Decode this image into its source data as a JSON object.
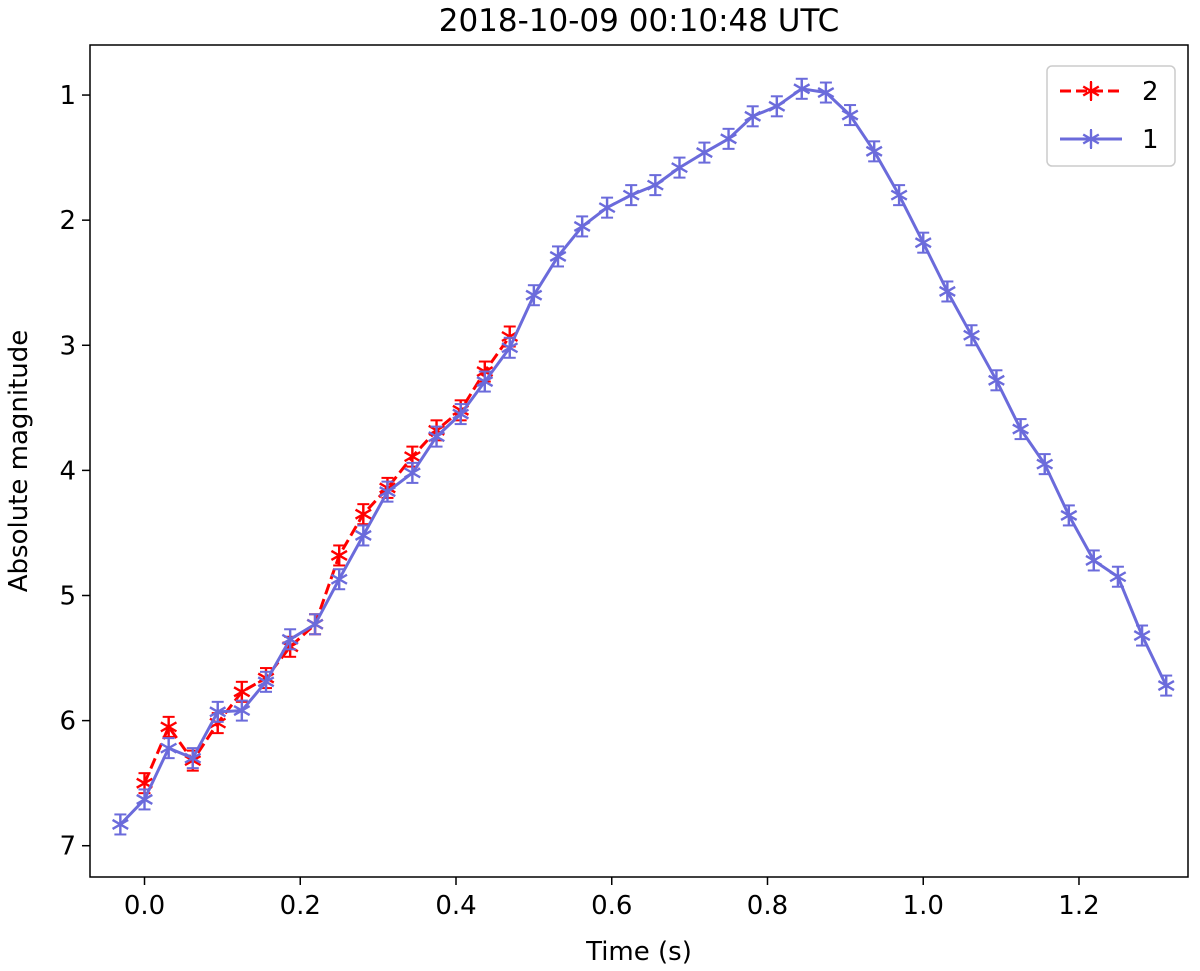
{
  "chart_data": {
    "type": "line",
    "title": "2018-10-09 00:10:48 UTC",
    "xlabel": "Time (s)",
    "ylabel": "Absolute magnitude",
    "xlim": [
      -0.07,
      1.34
    ],
    "ylim": [
      7.25,
      0.6
    ],
    "y_inverted": true,
    "xticks": [
      0.0,
      0.2,
      0.4,
      0.6,
      0.8,
      1.0,
      1.2
    ],
    "xtick_labels": [
      "0.0",
      "0.2",
      "0.4",
      "0.6",
      "0.8",
      "1.0",
      "1.2"
    ],
    "yticks": [
      1,
      2,
      3,
      4,
      5,
      6,
      7
    ],
    "ytick_labels": [
      "1",
      "2",
      "3",
      "4",
      "5",
      "6",
      "7"
    ],
    "grid": false,
    "legend_position": "top-right",
    "series": [
      {
        "name": "2",
        "color": "#ff0000",
        "line_style": "dashed",
        "marker": "asterisk",
        "error": 0.08,
        "x": [
          0.0,
          0.031,
          0.062,
          0.094,
          0.125,
          0.156,
          0.187,
          0.219,
          0.25,
          0.281,
          0.312,
          0.344,
          0.375,
          0.406,
          0.437,
          0.469
        ],
        "y": [
          6.5,
          6.05,
          6.32,
          6.02,
          5.77,
          5.66,
          5.41,
          5.23,
          4.68,
          4.35,
          4.14,
          3.89,
          3.68,
          3.52,
          3.21,
          2.93
        ]
      },
      {
        "name": "1",
        "color": "#6b6bdb",
        "line_style": "solid",
        "marker": "asterisk",
        "error": 0.08,
        "x": [
          -0.031,
          0.0,
          0.031,
          0.062,
          0.094,
          0.125,
          0.156,
          0.187,
          0.219,
          0.25,
          0.281,
          0.312,
          0.344,
          0.375,
          0.406,
          0.437,
          0.469,
          0.5,
          0.531,
          0.562,
          0.594,
          0.625,
          0.656,
          0.687,
          0.719,
          0.75,
          0.781,
          0.812,
          0.844,
          0.875,
          0.906,
          0.937,
          0.969,
          1.0,
          1.031,
          1.062,
          1.094,
          1.125,
          1.156,
          1.187,
          1.219,
          1.25,
          1.281,
          1.312
        ],
        "y": [
          6.83,
          6.63,
          6.22,
          6.3,
          5.93,
          5.92,
          5.69,
          5.35,
          5.23,
          4.87,
          4.52,
          4.17,
          4.02,
          3.73,
          3.55,
          3.29,
          3.02,
          2.6,
          2.29,
          2.05,
          1.9,
          1.8,
          1.72,
          1.58,
          1.46,
          1.35,
          1.17,
          1.09,
          0.95,
          0.98,
          1.16,
          1.45,
          1.8,
          2.18,
          2.57,
          2.92,
          3.28,
          3.67,
          3.95,
          4.36,
          4.72,
          4.85,
          5.32,
          5.72
        ]
      }
    ]
  }
}
